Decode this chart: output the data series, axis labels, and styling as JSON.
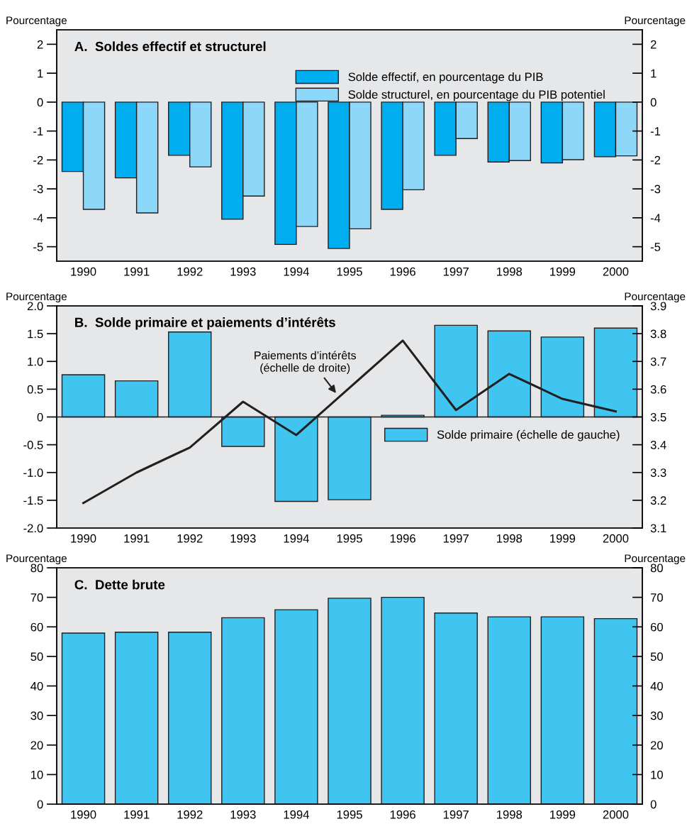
{
  "chart_data": [
    {
      "type": "bar",
      "title": "A.  Soldes effectif et structurel",
      "ylabel": "Pourcentage",
      "y2label": "Pourcentage",
      "categories": [
        "1990",
        "1991",
        "1992",
        "1993",
        "1994",
        "1995",
        "1996",
        "1997",
        "1998",
        "1999",
        "2000"
      ],
      "series": [
        {
          "name": "Solde effectif, en pourcentage du PIB",
          "color": "#00aeef",
          "values": [
            -2.4,
            -2.62,
            -1.84,
            -4.05,
            -4.92,
            -5.06,
            -3.71,
            -1.84,
            -2.07,
            -2.1,
            -1.89
          ]
        },
        {
          "name": "Solde structurel, en pourcentage du PIB potentiel",
          "color": "#8dd8f8",
          "values": [
            -3.71,
            -3.83,
            -2.24,
            -3.25,
            -4.3,
            -4.38,
            -3.03,
            -1.26,
            -2.02,
            -1.99,
            -1.86
          ]
        }
      ],
      "ylim": [
        -5.5,
        2.5
      ],
      "yticks": [
        -5,
        -4,
        -3,
        -2,
        -1,
        0,
        1,
        2
      ],
      "y2lim": [
        -5.5,
        2.5
      ],
      "y2ticks": [
        -5,
        -4,
        -3,
        -2,
        -1,
        0,
        1,
        2
      ],
      "legend": "top right",
      "grid": false
    },
    {
      "type": "bar",
      "title": "B.  Solde primaire et paiements d’intérêts",
      "ylabel": "Pourcentage",
      "y2label": "Pourcentage",
      "categories": [
        "1990",
        "1991",
        "1992",
        "1993",
        "1994",
        "1995",
        "1996",
        "1997",
        "1998",
        "1999",
        "2000"
      ],
      "series": [
        {
          "name": "Solde primaire (échelle de gauche)",
          "color": "#40c4f0",
          "values": [
            0.76,
            0.65,
            1.53,
            -0.53,
            -1.52,
            -1.49,
            0.03,
            1.65,
            1.55,
            1.44,
            1.6
          ]
        },
        {
          "type": "line",
          "axis": "y2",
          "color": "#231f20",
          "values": [
            3.19,
            3.3,
            3.39,
            3.555,
            3.435,
            3.605,
            3.775,
            3.525,
            3.655,
            3.565,
            3.52
          ]
        }
      ],
      "ylim": [
        -2.0,
        2.0
      ],
      "yticks": [
        {
          "value": -2,
          "label": "-2.0"
        },
        {
          "value": -1.5,
          "label": "-1.5"
        },
        {
          "value": -1,
          "label": "-1.0"
        },
        {
          "value": -0.5,
          "label": "-0.5"
        },
        0,
        0.5,
        {
          "value": 1,
          "label": "1.0"
        },
        1.5,
        {
          "value": 2,
          "label": "2.0"
        }
      ],
      "y2lim": [
        3.1,
        3.9
      ],
      "y2ticks": [
        3.1,
        3.2,
        3.3,
        3.4,
        3.5,
        3.6,
        3.7,
        3.8,
        3.9
      ],
      "annotations": [
        "Paiements d’intérêts\n(échelle de droite)"
      ],
      "ref_lines": [
        {
          "axis": "y",
          "value": 0,
          "color": "#231f20"
        }
      ],
      "legend": "center right",
      "grid": false
    },
    {
      "type": "bar",
      "title": "C.  Dette brute",
      "ylabel": "Pourcentage",
      "y2label": "Pourcentage",
      "categories": [
        "1990",
        "1991",
        "1992",
        "1993",
        "1994",
        "1995",
        "1996",
        "1997",
        "1998",
        "1999",
        "2000"
      ],
      "series": [
        {
          "color": "#40c4f0",
          "values": [
            57.9,
            58.2,
            58.2,
            63.1,
            65.8,
            69.7,
            70.0,
            64.7,
            63.4,
            63.4,
            62.8
          ]
        }
      ],
      "ylim": [
        0,
        80
      ],
      "yticks": [
        0,
        10,
        20,
        30,
        40,
        50,
        60,
        70,
        80
      ],
      "y2lim": [
        0,
        80
      ],
      "y2ticks": [
        0,
        10,
        20,
        30,
        40,
        50,
        60,
        70,
        80
      ],
      "grid": false
    }
  ]
}
